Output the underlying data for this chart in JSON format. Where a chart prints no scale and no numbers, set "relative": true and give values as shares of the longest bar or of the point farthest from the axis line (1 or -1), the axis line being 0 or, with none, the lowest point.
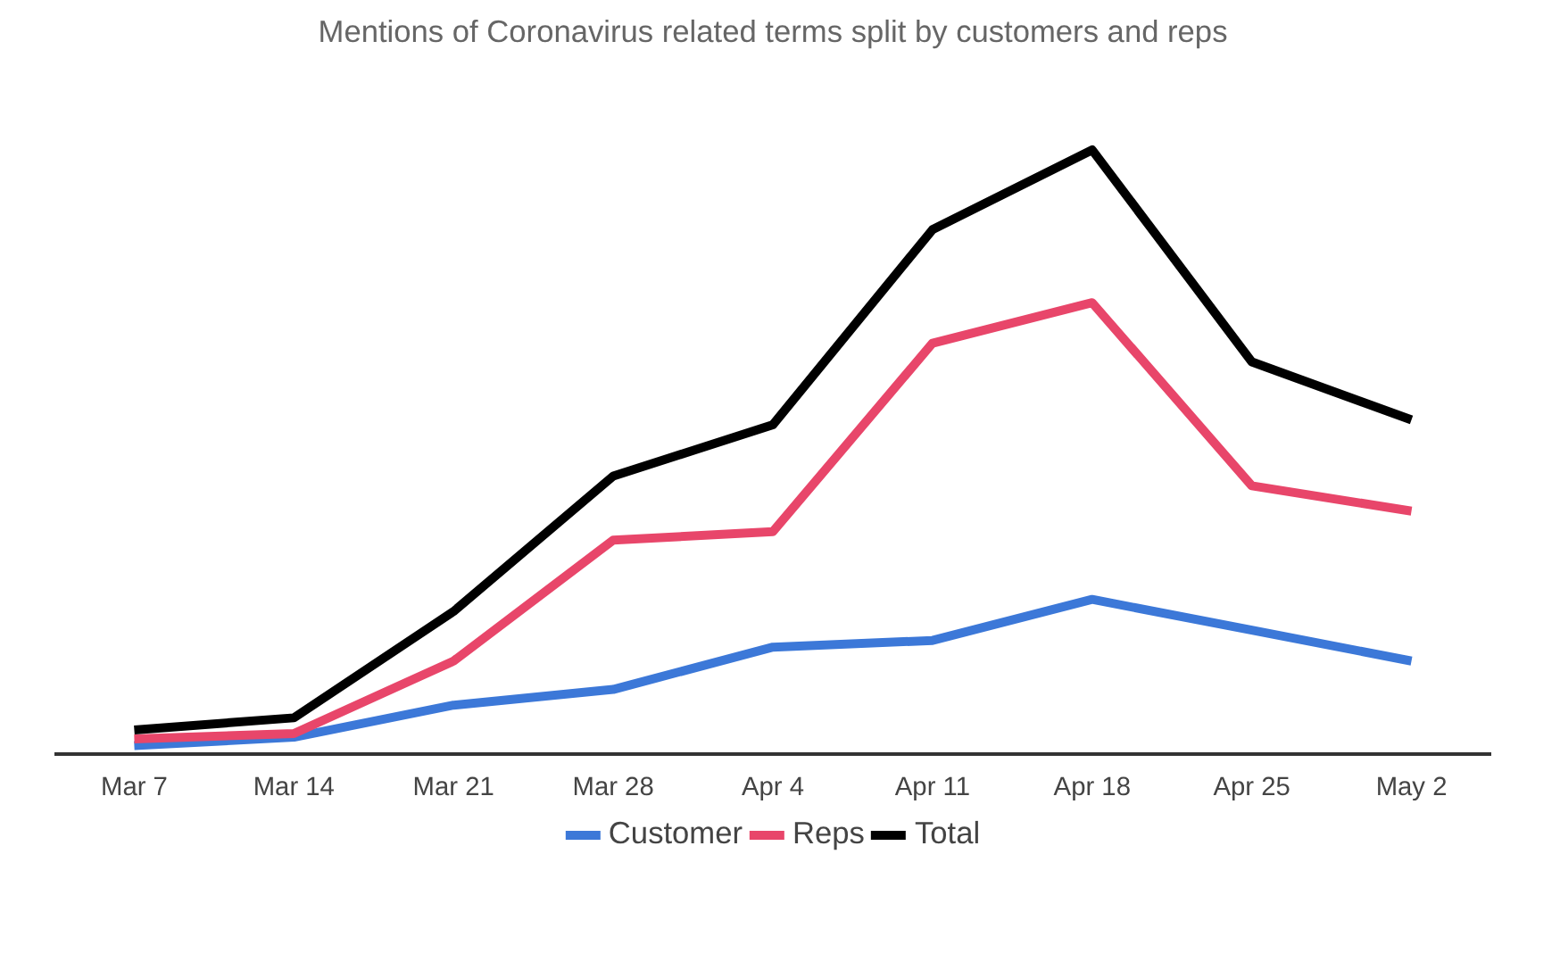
{
  "chart_data": {
    "type": "line",
    "title": "Mentions of Coronavirus related terms split by customers and reps",
    "categories": [
      "Mar 7",
      "Mar 14",
      "Mar 21",
      "Mar 28",
      "Apr 4",
      "Apr 11",
      "Apr 18",
      "Apr 25",
      "May 2"
    ],
    "relative": true,
    "legend": "bottom",
    "series": [
      {
        "name": "Customer",
        "color": "#3c78d8",
        "values": [
          0.014,
          0.028,
          0.081,
          0.107,
          0.177,
          0.188,
          0.256,
          0.205,
          0.154
        ]
      },
      {
        "name": "Reps",
        "color": "#e8466a",
        "values": [
          0.025,
          0.034,
          0.154,
          0.354,
          0.368,
          0.68,
          0.747,
          0.444,
          0.402
        ]
      },
      {
        "name": "Total",
        "color": "#000000",
        "values": [
          0.04,
          0.06,
          0.236,
          0.46,
          0.545,
          0.868,
          1,
          0.649,
          0.553
        ]
      }
    ]
  }
}
